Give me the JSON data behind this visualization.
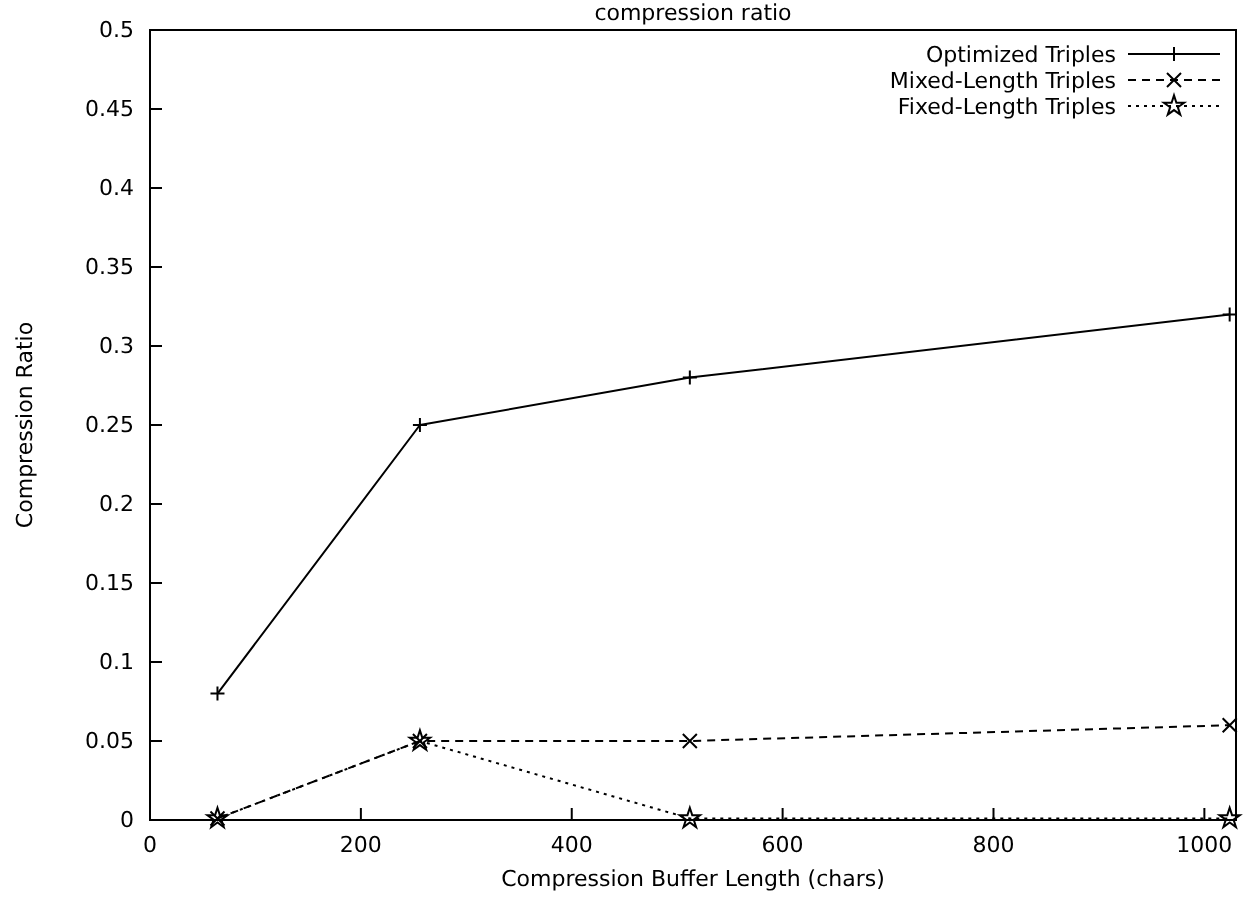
{
  "chart_data": {
    "type": "line",
    "title": "compression ratio",
    "xlabel": "Compression Buffer Length (chars)",
    "ylabel": "Compression Ratio",
    "x": [
      64,
      256,
      512,
      1024
    ],
    "xlim": [
      0,
      1030
    ],
    "xticks": [
      0,
      200,
      400,
      600,
      800,
      1000
    ],
    "ylim": [
      0,
      0.5
    ],
    "yticks": [
      0,
      0.05,
      0.1,
      0.15,
      0.2,
      0.25,
      0.3,
      0.35,
      0.4,
      0.45,
      0.5
    ],
    "legend": "top right",
    "grid": false,
    "series": [
      {
        "name": "Optimized Triples",
        "color": "#000000",
        "marker": "plus",
        "line_style": "solid",
        "values": [
          0.08,
          0.25,
          0.28,
          0.32
        ]
      },
      {
        "name": "Mixed-Length Triples",
        "color": "#000000",
        "marker": "cross",
        "line_style": "dashed",
        "values": [
          0.001,
          0.05,
          0.05,
          0.06
        ]
      },
      {
        "name": "Fixed-Length Triples",
        "color": "#000000",
        "marker": "star",
        "line_style": "dotted",
        "values": [
          0.001,
          0.05,
          0.001,
          0.001
        ]
      }
    ]
  }
}
